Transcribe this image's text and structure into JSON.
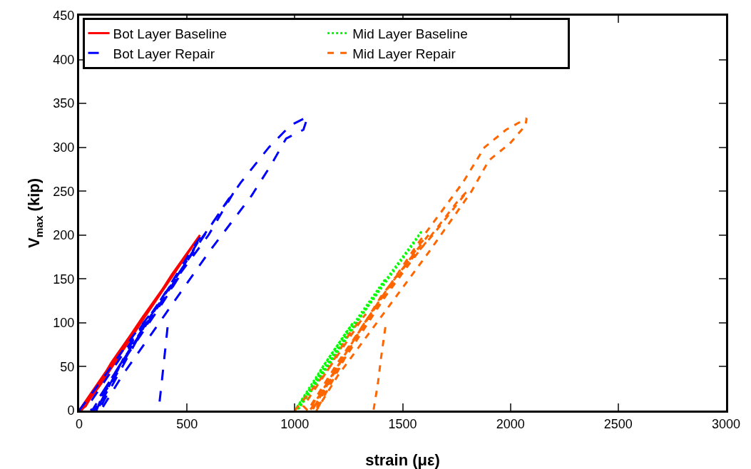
{
  "chart_data": {
    "type": "line",
    "xlabel": "strain (με)",
    "ylabel": "V$_{max}$ (kip)",
    "xlim": [
      0,
      3000
    ],
    "xticks": [
      0,
      500,
      1000,
      1500,
      2000,
      2500,
      3000
    ],
    "ylim": [
      0,
      450
    ],
    "yticks": [
      0,
      50,
      100,
      150,
      200,
      250,
      300,
      350,
      400,
      450
    ],
    "grid": false,
    "legend": "top left",
    "marker": "none",
    "series": [
      {
        "name": "Bot Layer Baseline",
        "color": "#ff0000",
        "line_style": "solid",
        "x": [
          0,
          140,
          280,
          250,
          150,
          30,
          0,
          140,
          290,
          420,
          380,
          200,
          20,
          0,
          150,
          300,
          430,
          560,
          520,
          300,
          100,
          10
        ],
        "values": [
          0,
          50,
          100,
          90,
          55,
          5,
          0,
          50,
          105,
          150,
          135,
          70,
          3,
          0,
          50,
          105,
          155,
          200,
          185,
          105,
          30,
          0
        ]
      },
      {
        "name": "Mid Layer Baseline",
        "color": "#00ff00",
        "line_style": "dotted",
        "x": [
          1000,
          1130,
          1270,
          1240,
          1130,
          1020,
          1000,
          1140,
          1290,
          1420,
          1380,
          1200,
          1020,
          1000,
          1150,
          1300,
          1440,
          1590,
          1550,
          1300,
          1100,
          1010
        ],
        "values": [
          0,
          50,
          100,
          90,
          50,
          3,
          0,
          50,
          105,
          150,
          135,
          70,
          3,
          0,
          50,
          105,
          155,
          205,
          190,
          105,
          30,
          0
        ]
      },
      {
        "name": "Bot Layer Repair",
        "color": "#0000ff",
        "line_style": "longdash",
        "x": [
          0,
          120,
          250,
          330,
          300,
          150,
          40,
          60,
          200,
          380,
          470,
          430,
          250,
          80,
          70,
          200,
          400,
          570,
          540,
          350,
          120,
          80,
          250,
          450,
          600,
          720,
          690,
          500,
          250,
          100,
          90,
          300,
          550,
          750,
          880,
          980,
          1060,
          1040,
          960,
          890,
          800,
          600,
          400,
          200,
          100
        ],
        "values": [
          0,
          40,
          85,
          110,
          100,
          45,
          5,
          0,
          55,
          120,
          155,
          140,
          75,
          10,
          0,
          55,
          130,
          200,
          190,
          115,
          25,
          0,
          75,
          150,
          200,
          250,
          240,
          170,
          80,
          10,
          0,
          95,
          190,
          260,
          300,
          325,
          335,
          320,
          310,
          280,
          245,
          180,
          110,
          40,
          0
        ]
      },
      {
        "name": "Mid Layer Repair",
        "color": "#ff6600",
        "line_style": "dashed",
        "x": [
          1000,
          1150,
          1260,
          1330,
          1300,
          1150,
          1040,
          1060,
          1200,
          1380,
          1480,
          1440,
          1260,
          1090,
          1070,
          1210,
          1400,
          1620,
          1580,
          1380,
          1140,
          1080,
          1260,
          1460,
          1640,
          1800,
          1760,
          1540,
          1270,
          1110,
          1100,
          1310,
          1570,
          1780,
          1880,
          1980,
          2075,
          2070,
          2000,
          1900,
          1820,
          1620,
          1410,
          1200,
          1100
        ],
        "values": [
          0,
          45,
          90,
          110,
          100,
          45,
          5,
          0,
          55,
          120,
          155,
          140,
          75,
          10,
          0,
          55,
          130,
          200,
          190,
          115,
          25,
          0,
          75,
          150,
          200,
          250,
          240,
          170,
          80,
          10,
          0,
          95,
          190,
          260,
          300,
          320,
          333,
          325,
          305,
          285,
          250,
          180,
          110,
          40,
          0
        ]
      },
      {
        "color": "#0000ff",
        "line_style": "longdash",
        "x": [
          410,
          395,
          382,
          372,
          368
        ],
        "values": [
          95,
          60,
          30,
          8,
          0
        ]
      },
      {
        "color": "#ff6600",
        "line_style": "dashed",
        "x": [
          1420,
          1400,
          1385,
          1370,
          1365
        ],
        "values": [
          95,
          60,
          30,
          8,
          0
        ]
      }
    ]
  }
}
